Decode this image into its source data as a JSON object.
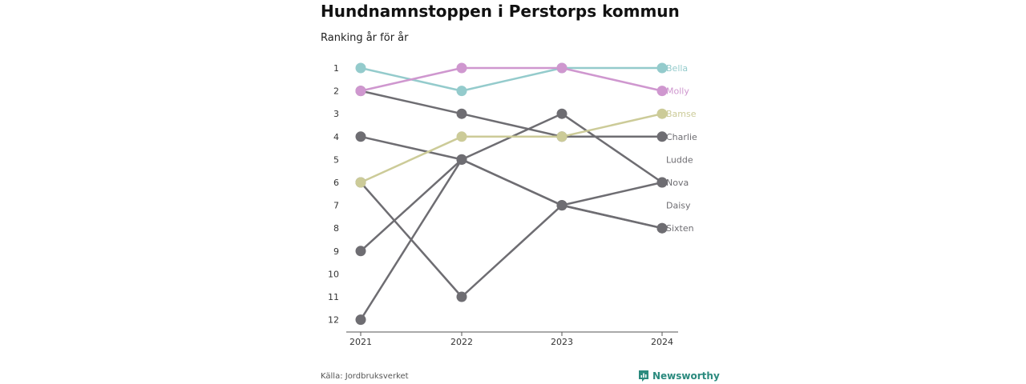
{
  "header": {
    "title": "Hundnamnstoppen i Perstorps kommun",
    "subtitle": "Ranking år för år"
  },
  "footer": {
    "source": "Källa: Jordbruksverket",
    "brand": "Newsworthy"
  },
  "colors": {
    "default": "#6e6d72",
    "axis": "#555555",
    "Bella": "#94cbcc",
    "Molly": "#cf97cf",
    "Bamse": "#cccb98"
  },
  "icons": {
    "brand": "newsworthy-logo-icon"
  },
  "chart_data": {
    "type": "line",
    "title": "Hundnamnstoppen i Perstorps kommun",
    "subtitle": "Ranking år för år",
    "x": [
      "2021",
      "2022",
      "2023",
      "2024"
    ],
    "y_ticks": [
      1,
      2,
      3,
      4,
      5,
      6,
      7,
      8,
      9,
      10,
      11,
      12
    ],
    "ylim": [
      1,
      12
    ],
    "y_inverted": true,
    "grid": false,
    "series": [
      {
        "name": "Bella",
        "values": [
          1,
          2,
          1,
          1
        ],
        "highlight": true
      },
      {
        "name": "Molly",
        "values": [
          2,
          1,
          1,
          2
        ],
        "highlight": true
      },
      {
        "name": "Bamse",
        "values": [
          6,
          4,
          4,
          3
        ],
        "highlight": true
      },
      {
        "name": "Charlie",
        "values": [
          2,
          3,
          4,
          4
        ],
        "highlight": false
      },
      {
        "name": "Ludde",
        "values": [
          4,
          5,
          7,
          8
        ],
        "highlight": false
      },
      {
        "name": "Nova",
        "values": [
          12,
          5,
          7,
          6
        ],
        "highlight": false
      },
      {
        "name": "Daisy",
        "values": [
          9,
          5,
          3,
          6
        ],
        "highlight": false
      },
      {
        "name": "Sixten",
        "values": [
          6,
          11,
          7,
          8
        ],
        "highlight": false
      }
    ],
    "end_labels": [
      "Bella",
      "Molly",
      "Bamse",
      "Charlie",
      "Ludde",
      "Nova",
      "Daisy",
      "Sixten"
    ]
  }
}
